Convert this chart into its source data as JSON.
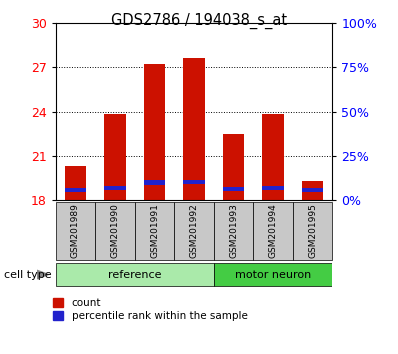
{
  "title": "GDS2786 / 194038_s_at",
  "samples": [
    "GSM201989",
    "GSM201990",
    "GSM201991",
    "GSM201992",
    "GSM201993",
    "GSM201994",
    "GSM201995"
  ],
  "count_values": [
    20.3,
    23.8,
    27.2,
    27.6,
    22.5,
    23.8,
    19.3
  ],
  "percentile_bottom": [
    18.55,
    18.7,
    19.05,
    19.1,
    18.62,
    18.7,
    18.55
  ],
  "percentile_height": [
    0.28,
    0.28,
    0.28,
    0.28,
    0.28,
    0.28,
    0.28
  ],
  "y_min": 18,
  "y_max": 30,
  "y_ticks_left": [
    18,
    21,
    24,
    27,
    30
  ],
  "y_ticks_right_vals": [
    0,
    25,
    50,
    75,
    100
  ],
  "bar_color": "#CC1100",
  "percentile_color": "#2222CC",
  "bar_width": 0.55,
  "sample_box_color": "#c8c8c8",
  "ref_color": "#aaeaaa",
  "mn_color": "#44cc44",
  "label_count": "count",
  "label_percentile": "percentile rank within the sample",
  "cell_type_label": "cell type"
}
